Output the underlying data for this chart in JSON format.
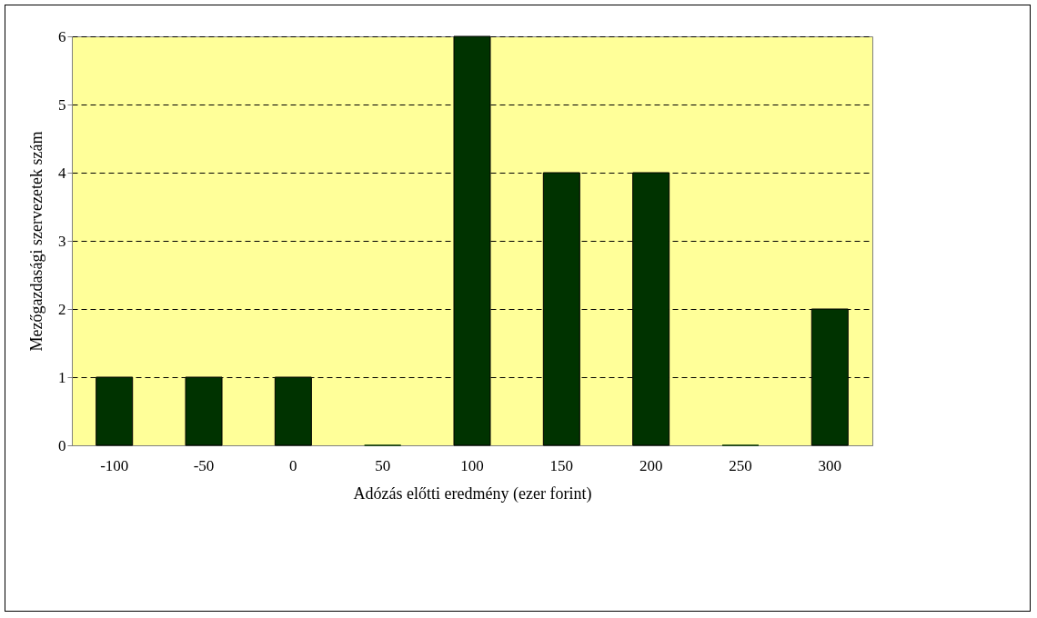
{
  "chart_data": {
    "type": "bar",
    "xlabel": "Adózás előtti eredmény (ezer forint)",
    "ylabel": "Mezőgazdasági szervezetek szám",
    "categories": [
      "-100",
      "-50",
      "0",
      "50",
      "100",
      "150",
      "200",
      "250",
      "300"
    ],
    "values": [
      1,
      1,
      1,
      0,
      6,
      4,
      4,
      0,
      2
    ],
    "color": "#003300",
    "ylim": [
      0,
      6
    ],
    "yticks": [
      0,
      1,
      2,
      3,
      4,
      5,
      6
    ],
    "grid": "y"
  }
}
